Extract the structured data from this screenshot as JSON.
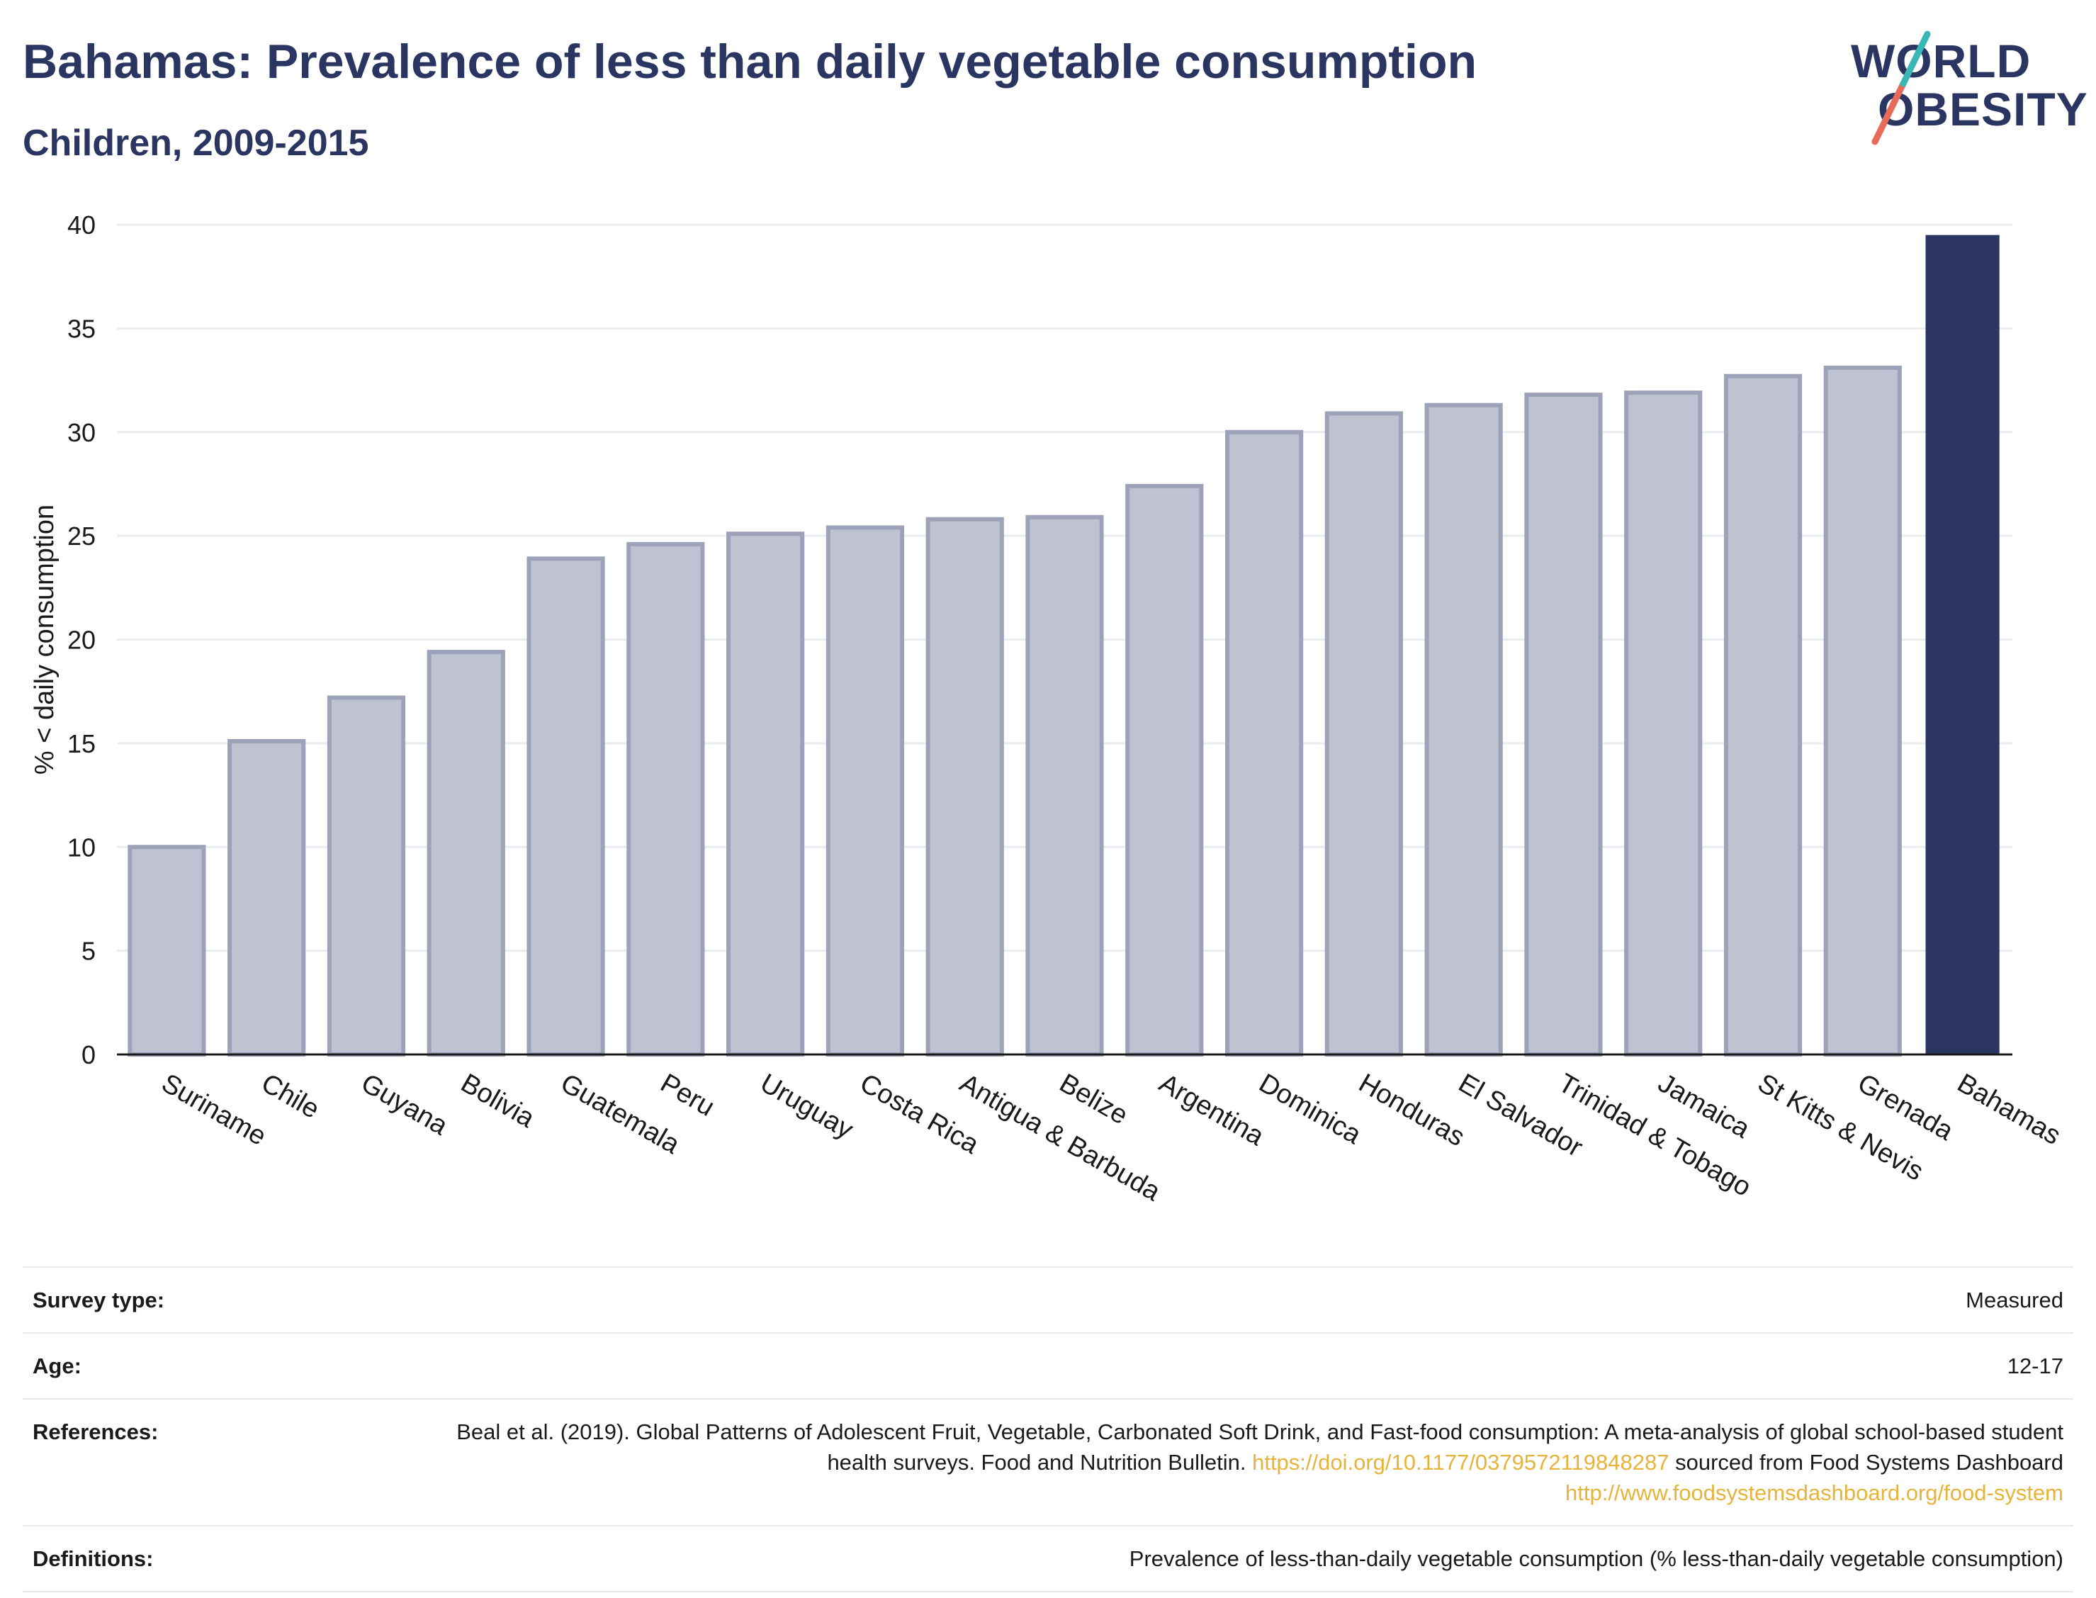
{
  "header": {
    "title": "Bahamas: Prevalence of less than daily vegetable consumption",
    "subtitle": "Children, 2009-2015"
  },
  "logo": {
    "line1": "WORLD",
    "line2": "OBESITY",
    "colors": {
      "text": "#2a3561",
      "slash_teal": "#3ab6b4",
      "slash_coral": "#e86a58"
    }
  },
  "chart_data": {
    "type": "bar",
    "title": "Bahamas: Prevalence of less than daily vegetable consumption",
    "subtitle": "Children, 2009-2015",
    "xlabel": "",
    "ylabel": "% < daily consumption",
    "ylim": [
      0,
      40
    ],
    "yticks": [
      0,
      5,
      10,
      15,
      20,
      25,
      30,
      35,
      40
    ],
    "grid": true,
    "highlight": "Bahamas",
    "colors": {
      "bar": "#bfc2d0",
      "bar_edge": "#9ea2b8",
      "highlight": "#2a3561",
      "grid": "#e9ecf1"
    },
    "categories": [
      "Suriname",
      "Chile",
      "Guyana",
      "Bolivia",
      "Guatemala",
      "Peru",
      "Uruguay",
      "Costa Rica",
      "Antigua & Barbuda",
      "Belize",
      "Argentina",
      "Dominica",
      "Honduras",
      "El Salvador",
      "Trinidad & Tobago",
      "Jamaica",
      "St Kitts & Nevis",
      "Grenada",
      "Bahamas"
    ],
    "values": [
      10.0,
      15.1,
      17.2,
      19.4,
      23.9,
      24.6,
      25.1,
      25.4,
      25.8,
      25.9,
      27.4,
      30.0,
      30.9,
      31.3,
      31.8,
      31.9,
      32.7,
      33.1,
      39.5
    ]
  },
  "info": {
    "survey_type": {
      "label": "Survey type:",
      "value": "Measured"
    },
    "age": {
      "label": "Age:",
      "value": "12-17"
    },
    "references": {
      "label": "References:",
      "text1": "Beal et al. (2019). Global Patterns of Adolescent Fruit, Vegetable, Carbonated Soft Drink, and Fast-food consumption: A meta-analysis of global school-based student health surveys. Food and Nutrition Bulletin. ",
      "link1": "https://doi.org/10.1177/0379572119848287",
      "text2": " sourced from Food Systems Dashboard ",
      "link2": "http://www.foodsystemsdashboard.org/food-system"
    },
    "definitions": {
      "label": "Definitions:",
      "value": "Prevalence of less-than-daily vegetable consumption (% less-than-daily vegetable consumption)"
    }
  }
}
